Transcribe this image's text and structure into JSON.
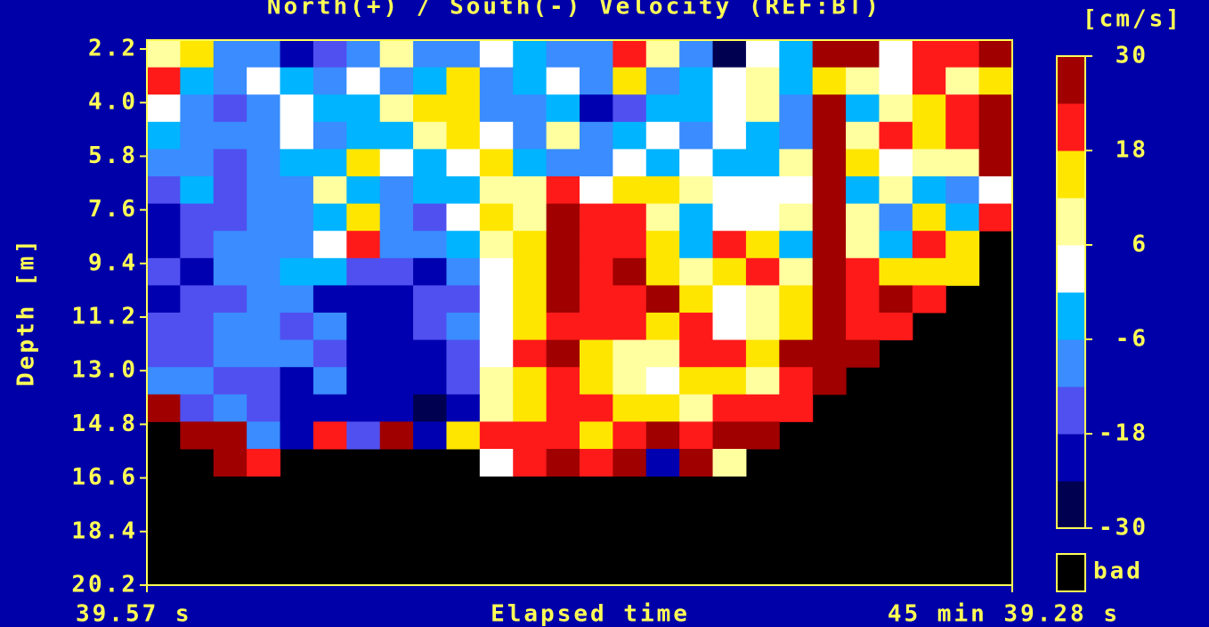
{
  "chart_data": {
    "type": "heatmap",
    "title": "North(+) / South(-) Velocity (REF:BT)",
    "colorbar_label": "[cm/s]",
    "ylabel": "Depth [m]",
    "xlabel": "Elapsed time",
    "xlim": [
      39.57,
      2739.28
    ],
    "xticks": [
      {
        "value": 39.57,
        "label": "39.57 s"
      },
      {
        "value": 2739.28,
        "label": "45 min 39.28 s"
      }
    ],
    "ylim": [
      1.9,
      20.2
    ],
    "yticks": [
      2.2,
      {
        "value": 4,
        "label": "4.0"
      },
      5.8,
      7.6,
      9.4,
      11.2,
      {
        "value": 13,
        "label": "13.0"
      },
      14.8,
      16.6,
      18.4,
      20.2
    ],
    "clim": [
      -30,
      30
    ],
    "cticks": [
      30,
      18,
      6,
      -6,
      -18,
      -30
    ],
    "colors": [
      "#000050",
      "#0000b0",
      "#5050f0",
      "#3a8cff",
      "#00b4ff",
      "#ffffff",
      "#ffffa0",
      "#ffe600",
      "#ff1a1a",
      "#a00000"
    ],
    "bad_label": "bad",
    "bad_color": "#000000",
    "values": [
      [
        8,
        15,
        -10,
        -8,
        -20,
        -15,
        -10,
        10,
        -8,
        -12,
        3,
        -5,
        -8,
        -10,
        20,
        10,
        -10,
        -25,
        5,
        -5,
        25,
        28,
        5,
        20,
        22,
        26
      ],
      [
        20,
        -5,
        -8,
        5,
        -3,
        -10,
        0,
        -8,
        -3,
        15,
        -8,
        -6,
        0,
        -8,
        15,
        -12,
        -5,
        5,
        10,
        -3,
        15,
        8,
        3,
        22,
        10,
        15
      ],
      [
        5,
        -10,
        -15,
        -8,
        0,
        -5,
        -5,
        10,
        15,
        12,
        -8,
        -10,
        -6,
        -20,
        -15,
        -5,
        -3,
        0,
        8,
        -8,
        25,
        -5,
        10,
        15,
        18,
        25
      ],
      [
        -5,
        -12,
        -10,
        -8,
        3,
        -8,
        -6,
        -3,
        10,
        12,
        3,
        -8,
        10,
        -10,
        -5,
        0,
        -8,
        5,
        -5,
        -10,
        25,
        10,
        20,
        12,
        22,
        26
      ],
      [
        -8,
        -12,
        -15,
        -10,
        -6,
        -3,
        12,
        5,
        -5,
        0,
        15,
        -5,
        -8,
        -10,
        0,
        -5,
        5,
        -3,
        -6,
        10,
        25,
        15,
        0,
        10,
        8,
        25
      ],
      [
        -15,
        -5,
        -15,
        -12,
        -10,
        10,
        -5,
        -8,
        -3,
        -5,
        10,
        8,
        20,
        5,
        15,
        15,
        10,
        3,
        0,
        5,
        25,
        -5,
        8,
        -3,
        -8,
        3
      ],
      [
        -20,
        -15,
        -18,
        -12,
        -8,
        -6,
        15,
        -10,
        -15,
        3,
        12,
        10,
        25,
        22,
        18,
        10,
        -5,
        0,
        5,
        10,
        26,
        8,
        -8,
        15,
        -5,
        20
      ],
      [
        -22,
        -15,
        -12,
        -8,
        -10,
        0,
        20,
        -8,
        -10,
        -6,
        8,
        15,
        25,
        20,
        22,
        15,
        -3,
        20,
        12,
        -6,
        25,
        10,
        -5,
        20,
        12,
        null
      ],
      [
        -18,
        -20,
        -12,
        -10,
        -6,
        -5,
        -15,
        -18,
        -22,
        -12,
        5,
        15,
        26,
        18,
        24,
        12,
        10,
        15,
        20,
        8,
        26,
        22,
        15,
        12,
        15,
        null
      ],
      [
        -22,
        -18,
        -15,
        -10,
        -12,
        -20,
        -24,
        -22,
        -15,
        -18,
        3,
        12,
        25,
        20,
        22,
        25,
        15,
        5,
        10,
        12,
        25,
        22,
        24,
        18,
        null,
        null
      ],
      [
        -18,
        -15,
        -10,
        -12,
        -15,
        -8,
        -22,
        -20,
        -18,
        -12,
        0,
        12,
        22,
        18,
        20,
        12,
        18,
        5,
        8,
        15,
        26,
        18,
        22,
        null,
        null,
        null
      ],
      [
        -15,
        -18,
        -12,
        -10,
        -8,
        -15,
        -24,
        -20,
        -22,
        -15,
        5,
        18,
        25,
        15,
        10,
        8,
        20,
        22,
        15,
        25,
        25,
        24,
        null,
        null,
        null,
        null
      ],
      [
        -12,
        -10,
        -15,
        -18,
        -20,
        -12,
        -22,
        -24,
        -20,
        -18,
        8,
        15,
        22,
        12,
        10,
        5,
        15,
        12,
        10,
        20,
        26,
        null,
        null,
        null,
        null,
        null
      ],
      [
        26,
        -15,
        -8,
        -18,
        -22,
        -20,
        -24,
        -22,
        -26,
        -20,
        10,
        12,
        18,
        22,
        15,
        12,
        10,
        20,
        20,
        22,
        null,
        null,
        null,
        null,
        null,
        null
      ],
      [
        null,
        25,
        28,
        -12,
        -20,
        20,
        -15,
        25,
        -22,
        15,
        18,
        20,
        22,
        15,
        18,
        25,
        20,
        25,
        28,
        null,
        null,
        null,
        null,
        null,
        null,
        null
      ],
      [
        null,
        null,
        28,
        20,
        null,
        null,
        null,
        null,
        null,
        null,
        5,
        22,
        25,
        20,
        26,
        -20,
        28,
        10,
        null,
        null,
        null,
        null,
        null,
        null,
        null,
        null
      ],
      [
        null,
        null,
        null,
        null,
        null,
        null,
        null,
        null,
        null,
        null,
        null,
        null,
        null,
        null,
        null,
        null,
        null,
        null,
        null,
        null,
        null,
        null,
        null,
        null,
        null,
        null
      ],
      [
        null,
        null,
        null,
        null,
        null,
        null,
        null,
        null,
        null,
        null,
        null,
        null,
        null,
        null,
        null,
        null,
        null,
        null,
        null,
        null,
        null,
        null,
        null,
        null,
        null,
        null
      ],
      [
        null,
        null,
        null,
        null,
        null,
        null,
        null,
        null,
        null,
        null,
        null,
        null,
        null,
        null,
        null,
        null,
        null,
        null,
        null,
        null,
        null,
        null,
        null,
        null,
        null,
        null
      ],
      [
        null,
        null,
        null,
        null,
        null,
        null,
        null,
        null,
        null,
        null,
        null,
        null,
        null,
        null,
        null,
        null,
        null,
        null,
        null,
        null,
        null,
        null,
        null,
        null,
        null,
        null
      ]
    ]
  }
}
